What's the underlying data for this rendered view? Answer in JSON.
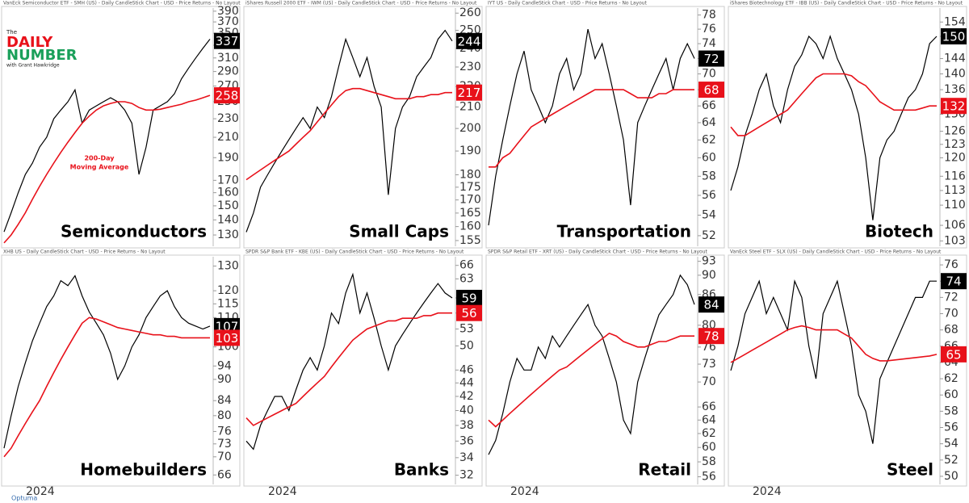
{
  "logo": {
    "line1": "The",
    "line2": "DAILY",
    "line3": "NUMBER",
    "line4": "with Grant Hawkridge"
  },
  "footer": "Optuma",
  "chart_data": [
    {
      "type": "line",
      "header": "VanEck Semiconductor ETF - SMH (US) - Daily CandleStick Chart - USD - Price Returns - No Layout",
      "title": "Semiconductors",
      "annotation": [
        "200-Day",
        "Moving Average"
      ],
      "log_scale": true,
      "ylim": [
        123,
        396
      ],
      "yticks": [
        130,
        140,
        150,
        160,
        170,
        190,
        210,
        230,
        250,
        270,
        290,
        310,
        330,
        350,
        370,
        390
      ],
      "series": [
        {
          "color": "#000000",
          "badge": 337,
          "values": [
            132,
            145,
            160,
            175,
            185,
            200,
            210,
            230,
            240,
            250,
            265,
            225,
            240,
            245,
            250,
            255,
            250,
            240,
            225,
            175,
            200,
            240,
            245,
            250,
            260,
            280,
            295,
            310,
            325,
            340
          ]
        },
        {
          "color": "#e8111a",
          "badge": 258,
          "values": [
            125,
            130,
            137,
            145,
            155,
            165,
            175,
            185,
            195,
            205,
            215,
            225,
            233,
            240,
            245,
            248,
            250,
            250,
            248,
            243,
            240,
            240,
            241,
            243,
            245,
            247,
            250,
            252,
            255,
            258
          ]
        }
      ]
    },
    {
      "type": "line",
      "header": "iShares Russell 2000 ETF - IWM (US) - Daily CandleStick Chart - USD - Price Returns - No Layout",
      "title": "Small Caps",
      "log_scale": true,
      "ylim": [
        153,
        263
      ],
      "yticks": [
        155,
        160,
        165,
        170,
        175,
        180,
        190,
        200,
        210,
        220,
        230,
        240,
        250,
        260
      ],
      "series": [
        {
          "color": "#000000",
          "badge": 244,
          "values": [
            158,
            165,
            175,
            180,
            185,
            190,
            195,
            200,
            205,
            200,
            210,
            205,
            215,
            230,
            245,
            235,
            225,
            235,
            220,
            210,
            172,
            200,
            210,
            215,
            225,
            230,
            235,
            245,
            250,
            244
          ]
        },
        {
          "color": "#e8111a",
          "badge": 217,
          "values": [
            178,
            180,
            182,
            184,
            186,
            188,
            190,
            193,
            196,
            199,
            203,
            207,
            211,
            215,
            218,
            219,
            219,
            218,
            217,
            216,
            215,
            214,
            214,
            214,
            215,
            215,
            216,
            216,
            217,
            217
          ]
        }
      ]
    },
    {
      "type": "line",
      "header": "IYT US - Daily CandleStick Chart - USD - Price Returns - No Layout",
      "title": "Transportation",
      "log_scale": true,
      "ylim": [
        51,
        79
      ],
      "yticks": [
        52,
        54,
        56,
        58,
        60,
        62,
        64,
        66,
        68,
        70,
        72,
        74,
        76,
        78
      ],
      "series": [
        {
          "color": "#000000",
          "badge": 72,
          "values": [
            53,
            58,
            62,
            66,
            70,
            73,
            68,
            66,
            64,
            66,
            70,
            72,
            68,
            70,
            76,
            72,
            74,
            70,
            66,
            62,
            55,
            64,
            66,
            68,
            70,
            72,
            68,
            72,
            74,
            72
          ]
        },
        {
          "color": "#e8111a",
          "badge": 68,
          "values": [
            59,
            59,
            60,
            60.5,
            61.5,
            62.5,
            63.5,
            64,
            64.5,
            65,
            65.5,
            66,
            66.5,
            67,
            67.5,
            68,
            68,
            68,
            68,
            68,
            67.5,
            67,
            67,
            67,
            67.5,
            67.5,
            68,
            68,
            68,
            68
          ]
        }
      ]
    },
    {
      "type": "line",
      "header": "iShares Biotechnology ETF - IBB (US) - Daily CandleStick Chart - USD - Price Returns - No Layout",
      "title": "Biotech",
      "log_scale": true,
      "ylim": [
        102,
        158
      ],
      "yticks": [
        103,
        106,
        110,
        113,
        116,
        120,
        123,
        126,
        130,
        136,
        140,
        144,
        150,
        154
      ],
      "series": [
        {
          "color": "#000000",
          "badge": 150,
          "values": [
            113,
            118,
            125,
            130,
            136,
            140,
            132,
            128,
            136,
            142,
            145,
            150,
            148,
            144,
            150,
            144,
            140,
            136,
            130,
            120,
            107,
            120,
            124,
            126,
            130,
            134,
            136,
            140,
            148,
            150
          ]
        },
        {
          "color": "#e8111a",
          "badge": 132,
          "values": [
            127,
            125,
            125,
            126,
            127,
            128,
            129,
            130,
            131,
            133,
            135,
            137,
            139,
            140,
            140,
            140,
            140,
            139.5,
            138,
            137,
            135,
            133,
            132,
            131,
            131,
            131,
            131,
            131.5,
            132,
            132
          ]
        }
      ]
    },
    {
      "type": "line",
      "header": "XHB US - Daily CandleStick Chart - USD - Price Returns - No Layout",
      "title": "Homebuilders",
      "x_label": "2024",
      "log_scale": true,
      "ylim": [
        64,
        134
      ],
      "yticks": [
        66,
        70,
        73,
        76,
        80,
        84,
        90,
        94,
        100,
        110,
        115,
        120,
        130
      ],
      "series": [
        {
          "color": "#000000",
          "badge": 107,
          "values": [
            72,
            80,
            88,
            95,
            102,
            108,
            114,
            118,
            124,
            122,
            126,
            118,
            112,
            108,
            104,
            98,
            90,
            94,
            100,
            104,
            110,
            114,
            118,
            120,
            114,
            110,
            108,
            107,
            106,
            107
          ]
        },
        {
          "color": "#e8111a",
          "badge": 103,
          "values": [
            70,
            72,
            75,
            78,
            81,
            84,
            88,
            92,
            96,
            100,
            104,
            108,
            110,
            109.5,
            108.5,
            107.5,
            106.5,
            106,
            105.5,
            105,
            104.5,
            104,
            104,
            103.5,
            103.5,
            103,
            103,
            103,
            103,
            103
          ]
        }
      ]
    },
    {
      "type": "line",
      "header": "SPDR S&P Bank ETF - KBE (US) - Daily CandleStick Chart - USD - Price Returns - No Layout",
      "title": "Banks",
      "x_label": "2024",
      "log_scale": true,
      "ylim": [
        31,
        68
      ],
      "yticks": [
        32,
        34,
        36,
        38,
        40,
        42,
        44,
        46,
        50,
        53,
        56,
        59,
        63,
        66
      ],
      "series": [
        {
          "color": "#000000",
          "badge": 59,
          "values": [
            36,
            35,
            38,
            40,
            42,
            42,
            40,
            43,
            46,
            48,
            46,
            50,
            56,
            54,
            60,
            64,
            56,
            60,
            55,
            50,
            46,
            50,
            52,
            54,
            56,
            58,
            60,
            62,
            60,
            59
          ]
        },
        {
          "color": "#e8111a",
          "badge": 56,
          "values": [
            39,
            38,
            38.5,
            39,
            39.5,
            40,
            40.5,
            41,
            42,
            43,
            44,
            45,
            46.5,
            48,
            49.5,
            51,
            52,
            53,
            53.5,
            54,
            54.5,
            54.5,
            55,
            55,
            55,
            55.5,
            55.5,
            56,
            56,
            56
          ]
        }
      ]
    },
    {
      "type": "line",
      "header": "SPDR S&P Retail ETF - XRT (US) - Daily CandleStick Chart - USD - Price Returns - No Layout",
      "title": "Retail",
      "x_label": "2024",
      "log_scale": true,
      "ylim": [
        55,
        94
      ],
      "yticks": [
        56,
        58,
        60,
        62,
        64,
        66,
        70,
        73,
        76,
        80,
        86,
        90,
        93
      ],
      "series": [
        {
          "color": "#000000",
          "badge": 84,
          "values": [
            59,
            61,
            65,
            70,
            74,
            72,
            72,
            76,
            74,
            78,
            76,
            78,
            80,
            82,
            84,
            80,
            78,
            74,
            70,
            64,
            62,
            70,
            74,
            78,
            82,
            84,
            86,
            90,
            88,
            84
          ]
        },
        {
          "color": "#e8111a",
          "badge": 78,
          "values": [
            64,
            63,
            64,
            65,
            66,
            67,
            68,
            69,
            70,
            71,
            72,
            72.5,
            73.5,
            74.5,
            75.5,
            76.5,
            77.5,
            78.5,
            78,
            77,
            76.5,
            76,
            76,
            76.5,
            77,
            77,
            77.5,
            78,
            78,
            78
          ]
        }
      ]
    },
    {
      "type": "line",
      "header": "VanEck Steel ETF - SLX (US) - Daily CandleStick Chart - USD - Price Returns - No Layout",
      "title": "Steel",
      "x_label": "2024",
      "log_scale": false,
      "ylim": [
        49,
        77
      ],
      "yticks": [
        50,
        52,
        54,
        56,
        58,
        60,
        62,
        64,
        66,
        68,
        70,
        72,
        74,
        76
      ],
      "series": [
        {
          "color": "#000000",
          "badge": 74,
          "values": [
            63,
            66,
            70,
            72,
            74,
            70,
            72,
            70,
            68,
            74,
            72,
            66,
            62,
            70,
            72,
            74,
            70,
            66,
            60,
            58,
            54,
            62,
            64,
            66,
            68,
            70,
            72,
            72,
            74,
            74
          ]
        },
        {
          "color": "#e8111a",
          "badge": 65,
          "values": [
            64,
            64.5,
            65,
            65.5,
            66,
            66.5,
            67,
            67.5,
            68,
            68.3,
            68.5,
            68.3,
            68,
            68,
            68,
            68,
            67.5,
            67,
            66,
            65,
            64.5,
            64.2,
            64.2,
            64.3,
            64.4,
            64.5,
            64.6,
            64.7,
            64.8,
            65
          ]
        }
      ]
    }
  ]
}
